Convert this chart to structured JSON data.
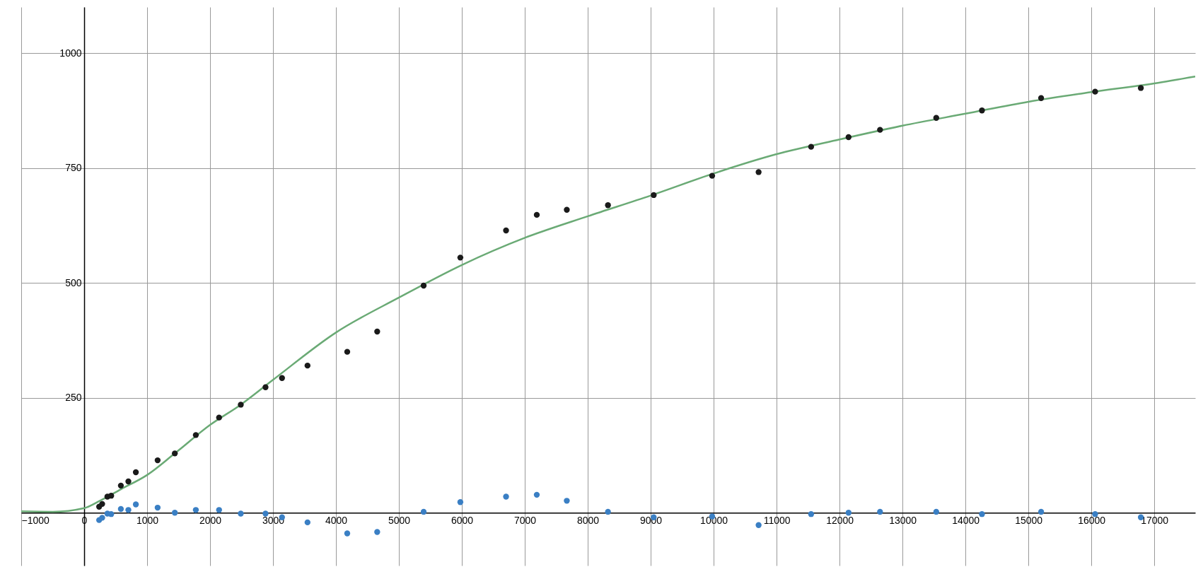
{
  "chart_data": {
    "type": "scatter",
    "xlim": [
      -1000,
      17650
    ],
    "ylim": [
      -115,
      1100
    ],
    "xticks": [
      -1000,
      0,
      1000,
      2000,
      3000,
      4000,
      5000,
      6000,
      7000,
      8000,
      9000,
      10000,
      11000,
      12000,
      13000,
      14000,
      15000,
      16000,
      17000
    ],
    "yticks": [
      250,
      500,
      750,
      1000
    ],
    "grid": true,
    "marker": "circle",
    "series": [
      {
        "type": "line",
        "marker": "none",
        "color": "#6aaa75",
        "x": [
          -1000,
          -500,
          0,
          250,
          583,
          1000,
          1440,
          2000,
          2488,
          3000,
          4000,
          5000,
          6000,
          7000,
          8000,
          9000,
          10000,
          11000,
          12000,
          13000,
          14000,
          15000,
          16000,
          17000,
          17650
        ],
        "values": [
          3,
          2,
          10,
          26,
          51,
          82,
          129,
          191,
          235,
          289,
          392,
          468,
          539,
          598,
          645,
          690,
          738,
          780,
          812,
          842,
          868,
          894,
          915,
          934,
          949
        ]
      },
      {
        "color": "#1a1a1a",
        "x": [
          238,
          286,
          369,
          429,
          583,
          702,
          821,
          1167,
          1440,
          1774,
          2143,
          2488,
          2881,
          3143,
          3548,
          4179,
          4655,
          5393,
          5976,
          6702,
          7190,
          7667,
          8321,
          9048,
          9976,
          10714,
          11548,
          12143,
          12643,
          13536,
          14262,
          15202,
          16060,
          16786
        ],
        "values": [
          13,
          19,
          35,
          37,
          59,
          68,
          88,
          114,
          129,
          169,
          207,
          235,
          273,
          293,
          320,
          350,
          394,
          494,
          555,
          614,
          648,
          659,
          669,
          691,
          733,
          741,
          796,
          817,
          833,
          859,
          875,
          902,
          916,
          924
        ]
      },
      {
        "color": "#3a7fc4",
        "x": [
          238,
          286,
          369,
          429,
          583,
          702,
          821,
          1167,
          1440,
          1774,
          2143,
          2488,
          2881,
          3143,
          3548,
          4179,
          4655,
          5393,
          5976,
          6702,
          7190,
          7667,
          8321,
          9048,
          9976,
          10714,
          11548,
          12143,
          12643,
          13536,
          14262,
          15202,
          16060,
          16786
        ],
        "values": [
          -16,
          -11,
          -2,
          -3,
          8,
          6,
          18,
          11,
          0,
          6,
          6,
          -2,
          -2,
          -10,
          -21,
          -45,
          -42,
          2,
          23,
          35,
          39,
          26,
          2,
          -10,
          -8,
          -27,
          -3,
          0,
          2,
          2,
          -3,
          2,
          -3,
          -10
        ]
      }
    ]
  }
}
